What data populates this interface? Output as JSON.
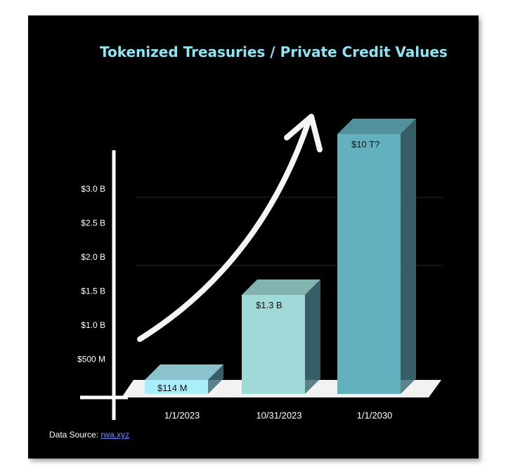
{
  "chart_data": {
    "type": "bar",
    "title": "Tokenized Treasuries / Private Credit Values",
    "y_tick_labels": [
      "$500 M",
      "$1.0 B",
      "$1.5 B",
      "$2.0 B",
      "$2.5 B",
      "$3.0 B"
    ],
    "y_tick_values": [
      0.5,
      1.0,
      1.5,
      2.0,
      2.5,
      3.0
    ],
    "y_unit": "billions USD",
    "ylim": [
      0,
      3.0
    ],
    "grid": true,
    "categories": [
      "1/1/2023",
      "10/31/2023",
      "1/1/2030"
    ],
    "values": [
      0.114,
      1.3,
      10000
    ],
    "data_labels": [
      "$114 M",
      "$1.3 B",
      "$10 T?"
    ],
    "bar_colors": [
      "#a8eefb",
      "#9fdad8",
      "#63b1be"
    ],
    "annotation": "upward trend arrow"
  },
  "source": {
    "label": "Data Source: ",
    "link_text": "rwa.xyz"
  }
}
